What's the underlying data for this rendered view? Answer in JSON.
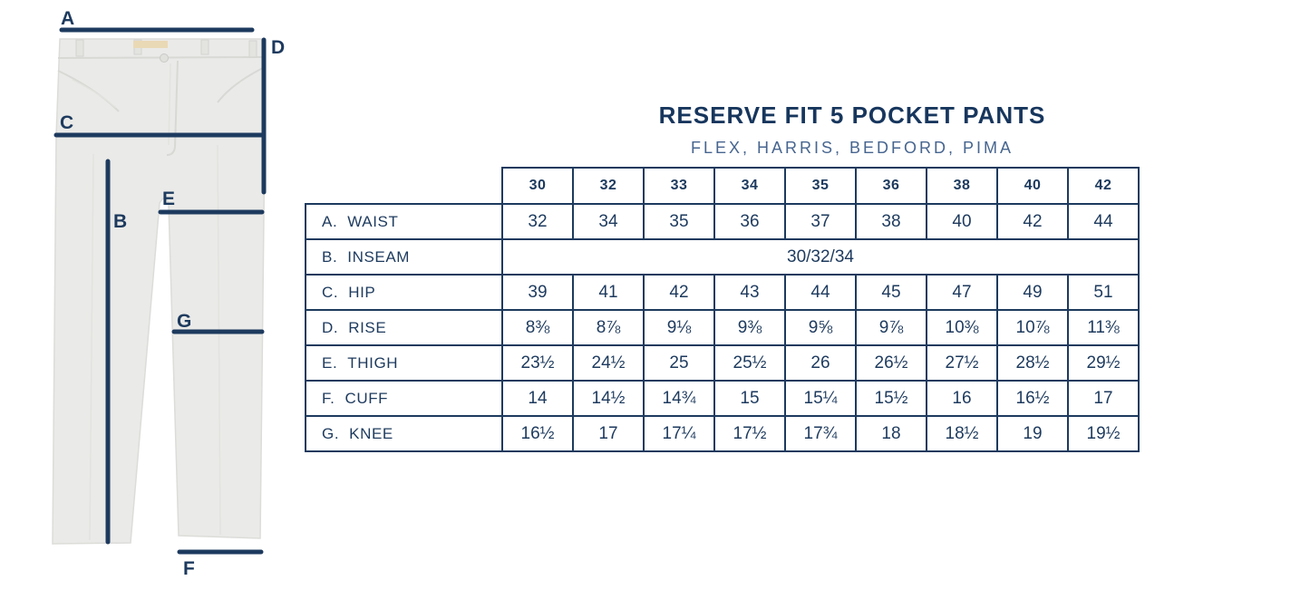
{
  "title": "RESERVE FIT 5 POCKET PANTS",
  "subtitle": "FLEX, HARRIS, BEDFORD, PIMA",
  "colors": {
    "navy": "#1d3a5e",
    "subtitle_blue": "#47658f",
    "fabric_gray": "#eaeae8"
  },
  "diagram": {
    "labels": {
      "a": "A",
      "b": "B",
      "c": "C",
      "d": "D",
      "e": "E",
      "f": "F",
      "g": "G"
    }
  },
  "size_chart": {
    "sizes": [
      "30",
      "32",
      "33",
      "34",
      "35",
      "36",
      "38",
      "40",
      "42"
    ],
    "rows": [
      {
        "letter": "A.",
        "name": "WAIST",
        "values": [
          "32",
          "34",
          "35",
          "36",
          "37",
          "38",
          "40",
          "42",
          "44"
        ]
      },
      {
        "letter": "B.",
        "name": "INSEAM",
        "span_value": "30/32/34"
      },
      {
        "letter": "C.",
        "name": "HIP",
        "values": [
          "39",
          "41",
          "42",
          "43",
          "44",
          "45",
          "47",
          "49",
          "51"
        ]
      },
      {
        "letter": "D.",
        "name": "RISE",
        "values": [
          "8⅜",
          "8⅞",
          "9⅛",
          "9⅜",
          "9⅝",
          "9⅞",
          "10⅜",
          "10⅞",
          "11⅜"
        ]
      },
      {
        "letter": "E.",
        "name": "THIGH",
        "values": [
          "23½",
          "24½",
          "25",
          "25½",
          "26",
          "26½",
          "27½",
          "28½",
          "29½"
        ]
      },
      {
        "letter": "F.",
        "name": "CUFF",
        "values": [
          "14",
          "14½",
          "14¾",
          "15",
          "15¼",
          "15½",
          "16",
          "16½",
          "17"
        ]
      },
      {
        "letter": "G.",
        "name": "KNEE",
        "values": [
          "16½",
          "17",
          "17¼",
          "17½",
          "17¾",
          "18",
          "18½",
          "19",
          "19½"
        ]
      }
    ]
  }
}
